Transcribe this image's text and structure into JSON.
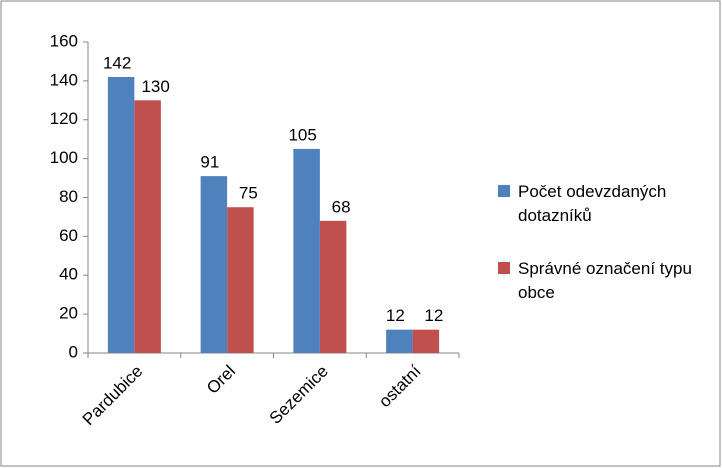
{
  "chart_data": {
    "type": "bar",
    "categories": [
      "Pardubice",
      "Orel",
      "Sezemice",
      "ostatní"
    ],
    "series": [
      {
        "name": "Počet odevzdaných dotazníků",
        "color": "#4f81bd",
        "values": [
          142,
          91,
          105,
          12
        ]
      },
      {
        "name": "Správné označení typu obce",
        "color": "#c0504d",
        "values": [
          130,
          75,
          68,
          12
        ]
      }
    ],
    "ylim": [
      0,
      160
    ],
    "yticks": [
      0,
      20,
      40,
      60,
      80,
      100,
      120,
      140,
      160
    ],
    "grid": false,
    "legend": "right"
  }
}
